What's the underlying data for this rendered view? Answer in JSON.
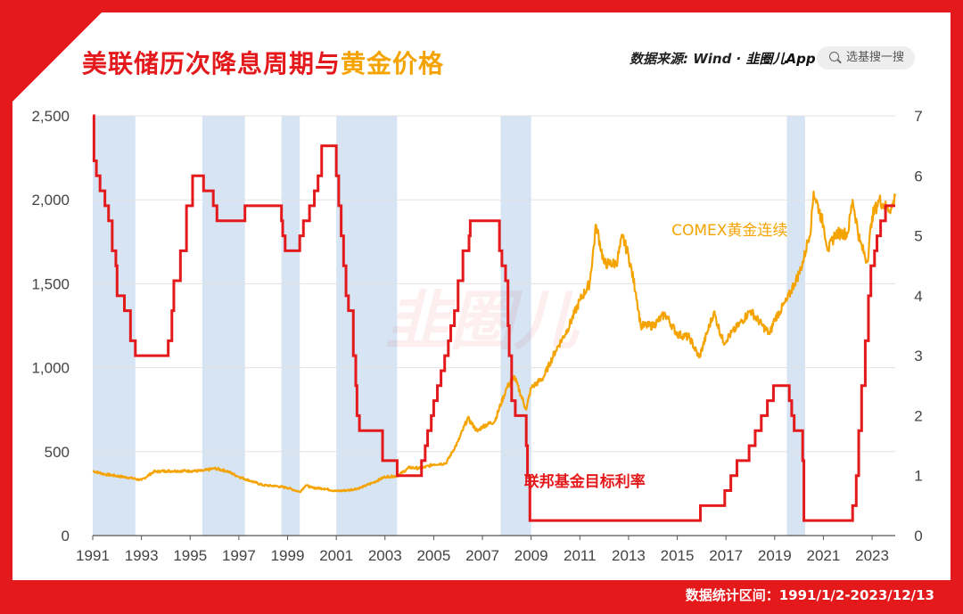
{
  "header": {
    "title_main": "美联储历次降息周期与",
    "title_highlight": "黄金价格",
    "source_label": "数据来源: Wind · ",
    "source_brand": "韭圈儿App",
    "search_placeholder": "选基搜一搜",
    "watermark": "韭圈儿"
  },
  "footer": {
    "date_range": "数据统计区间：1991/1/2-2023/12/13"
  },
  "colors": {
    "frame": "#e4191c",
    "gold": "#f5a300",
    "fed_rate": "#e4191c",
    "cut_band": "#d6e4f3"
  },
  "chart_data": {
    "type": "line",
    "title": "美联储历次降息周期与黄金价格",
    "x_range": [
      1991.0,
      2023.95
    ],
    "x_ticks": [
      "1991",
      "1993",
      "1995",
      "1997",
      "1999",
      "2001",
      "2003",
      "2005",
      "2007",
      "2009",
      "2011",
      "2013",
      "2015",
      "2017",
      "2019",
      "2021",
      "2023"
    ],
    "y_left": {
      "range": [
        0,
        2500
      ],
      "ticks": [
        "0",
        "500",
        "1,000",
        "1,500",
        "2,000",
        "2,500"
      ]
    },
    "y_right": {
      "range": [
        0,
        7
      ],
      "ticks": [
        "0",
        "1",
        "2",
        "3",
        "4",
        "5",
        "6",
        "7"
      ]
    },
    "grid": "horizontal",
    "rate_cut_periods": [
      [
        1991.0,
        1992.75
      ],
      [
        1995.5,
        1997.25
      ],
      [
        1998.75,
        1999.5
      ],
      [
        2001.0,
        2003.5
      ],
      [
        2007.75,
        2009.0
      ],
      [
        2019.5,
        2020.25
      ]
    ],
    "series": [
      {
        "name": "COMEX黄金连续",
        "axis": "left",
        "color": "#f5a300",
        "points": [
          [
            1991.0,
            385
          ],
          [
            1991.5,
            365
          ],
          [
            1992.0,
            355
          ],
          [
            1992.5,
            345
          ],
          [
            1993.0,
            330
          ],
          [
            1993.5,
            380
          ],
          [
            1994.0,
            385
          ],
          [
            1994.5,
            385
          ],
          [
            1995.0,
            385
          ],
          [
            1995.5,
            385
          ],
          [
            1996.0,
            400
          ],
          [
            1996.5,
            385
          ],
          [
            1997.0,
            350
          ],
          [
            1997.5,
            325
          ],
          [
            1998.0,
            300
          ],
          [
            1998.5,
            295
          ],
          [
            1999.0,
            285
          ],
          [
            1999.5,
            260
          ],
          [
            1999.75,
            300
          ],
          [
            2000.0,
            285
          ],
          [
            2000.5,
            280
          ],
          [
            2001.0,
            265
          ],
          [
            2001.5,
            270
          ],
          [
            2002.0,
            285
          ],
          [
            2002.5,
            315
          ],
          [
            2003.0,
            350
          ],
          [
            2003.5,
            355
          ],
          [
            2004.0,
            405
          ],
          [
            2004.5,
            400
          ],
          [
            2005.0,
            425
          ],
          [
            2005.5,
            430
          ],
          [
            2006.0,
            560
          ],
          [
            2006.4,
            700
          ],
          [
            2006.8,
            620
          ],
          [
            2007.0,
            650
          ],
          [
            2007.5,
            680
          ],
          [
            2008.0,
            880
          ],
          [
            2008.3,
            950
          ],
          [
            2008.8,
            750
          ],
          [
            2009.0,
            880
          ],
          [
            2009.5,
            940
          ],
          [
            2010.0,
            1100
          ],
          [
            2010.5,
            1230
          ],
          [
            2011.0,
            1400
          ],
          [
            2011.4,
            1500
          ],
          [
            2011.67,
            1850
          ],
          [
            2012.0,
            1620
          ],
          [
            2012.5,
            1620
          ],
          [
            2012.75,
            1780
          ],
          [
            2013.0,
            1670
          ],
          [
            2013.3,
            1450
          ],
          [
            2013.5,
            1250
          ],
          [
            2014.0,
            1250
          ],
          [
            2014.5,
            1320
          ],
          [
            2015.0,
            1200
          ],
          [
            2015.5,
            1180
          ],
          [
            2015.9,
            1060
          ],
          [
            2016.5,
            1330
          ],
          [
            2016.9,
            1150
          ],
          [
            2017.5,
            1250
          ],
          [
            2018.0,
            1340
          ],
          [
            2018.5,
            1250
          ],
          [
            2018.8,
            1200
          ],
          [
            2019.0,
            1290
          ],
          [
            2019.5,
            1400
          ],
          [
            2019.8,
            1500
          ],
          [
            2020.0,
            1560
          ],
          [
            2020.2,
            1650
          ],
          [
            2020.5,
            1850
          ],
          [
            2020.6,
            2050
          ],
          [
            2021.0,
            1850
          ],
          [
            2021.2,
            1700
          ],
          [
            2021.5,
            1800
          ],
          [
            2022.0,
            1800
          ],
          [
            2022.2,
            2000
          ],
          [
            2022.5,
            1750
          ],
          [
            2022.8,
            1630
          ],
          [
            2023.0,
            1900
          ],
          [
            2023.3,
            2000
          ],
          [
            2023.6,
            1950
          ],
          [
            2023.8,
            1950
          ],
          [
            2023.95,
            2020
          ]
        ]
      },
      {
        "name": "联邦基金目标利率",
        "axis": "right",
        "color": "#e4191c",
        "points": [
          [
            1991.0,
            7.0
          ],
          [
            1991.05,
            6.25
          ],
          [
            1991.15,
            6.0
          ],
          [
            1991.3,
            5.75
          ],
          [
            1991.5,
            5.5
          ],
          [
            1991.65,
            5.25
          ],
          [
            1991.8,
            4.75
          ],
          [
            1991.95,
            4.5
          ],
          [
            1992.0,
            4.0
          ],
          [
            1992.3,
            3.75
          ],
          [
            1992.55,
            3.25
          ],
          [
            1992.75,
            3.0
          ],
          [
            1994.1,
            3.25
          ],
          [
            1994.25,
            3.75
          ],
          [
            1994.33,
            4.25
          ],
          [
            1994.6,
            4.75
          ],
          [
            1994.85,
            5.5
          ],
          [
            1995.1,
            6.0
          ],
          [
            1995.55,
            5.75
          ],
          [
            1995.95,
            5.5
          ],
          [
            1996.1,
            5.25
          ],
          [
            1997.25,
            5.5
          ],
          [
            1998.75,
            5.25
          ],
          [
            1998.8,
            5.0
          ],
          [
            1998.9,
            4.75
          ],
          [
            1999.5,
            5.0
          ],
          [
            1999.65,
            5.25
          ],
          [
            1999.9,
            5.5
          ],
          [
            2000.1,
            5.75
          ],
          [
            2000.25,
            6.0
          ],
          [
            2000.4,
            6.5
          ],
          [
            2001.0,
            6.0
          ],
          [
            2001.1,
            5.5
          ],
          [
            2001.2,
            5.0
          ],
          [
            2001.3,
            4.5
          ],
          [
            2001.4,
            4.0
          ],
          [
            2001.5,
            3.75
          ],
          [
            2001.7,
            3.0
          ],
          [
            2001.8,
            2.5
          ],
          [
            2001.85,
            2.0
          ],
          [
            2001.95,
            1.75
          ],
          [
            2002.9,
            1.25
          ],
          [
            2003.5,
            1.0
          ],
          [
            2004.5,
            1.25
          ],
          [
            2004.65,
            1.5
          ],
          [
            2004.75,
            1.75
          ],
          [
            2004.9,
            2.0
          ],
          [
            2005.0,
            2.25
          ],
          [
            2005.15,
            2.5
          ],
          [
            2005.3,
            2.75
          ],
          [
            2005.45,
            3.0
          ],
          [
            2005.6,
            3.25
          ],
          [
            2005.7,
            3.5
          ],
          [
            2005.85,
            3.75
          ],
          [
            2006.0,
            4.25
          ],
          [
            2006.2,
            4.75
          ],
          [
            2006.45,
            5.0
          ],
          [
            2006.5,
            5.25
          ],
          [
            2007.7,
            4.75
          ],
          [
            2007.8,
            4.5
          ],
          [
            2007.95,
            4.25
          ],
          [
            2008.05,
            3.5
          ],
          [
            2008.1,
            3.0
          ],
          [
            2008.2,
            2.25
          ],
          [
            2008.35,
            2.0
          ],
          [
            2008.8,
            1.5
          ],
          [
            2008.85,
            1.0
          ],
          [
            2008.95,
            0.25
          ],
          [
            2015.95,
            0.5
          ],
          [
            2016.95,
            0.75
          ],
          [
            2017.2,
            1.0
          ],
          [
            2017.45,
            1.25
          ],
          [
            2017.95,
            1.5
          ],
          [
            2018.2,
            1.75
          ],
          [
            2018.45,
            2.0
          ],
          [
            2018.7,
            2.25
          ],
          [
            2018.95,
            2.5
          ],
          [
            2019.6,
            2.25
          ],
          [
            2019.7,
            2.0
          ],
          [
            2019.8,
            1.75
          ],
          [
            2020.15,
            1.25
          ],
          [
            2020.2,
            0.25
          ],
          [
            2022.2,
            0.5
          ],
          [
            2022.35,
            1.0
          ],
          [
            2022.45,
            1.75
          ],
          [
            2022.57,
            2.5
          ],
          [
            2022.72,
            3.25
          ],
          [
            2022.85,
            4.0
          ],
          [
            2022.95,
            4.5
          ],
          [
            2023.1,
            4.75
          ],
          [
            2023.2,
            5.0
          ],
          [
            2023.35,
            5.25
          ],
          [
            2023.55,
            5.5
          ]
        ]
      }
    ],
    "annotations": [
      {
        "text": "COMEX黄金连续",
        "color": "#f5a300"
      },
      {
        "text": "联邦基金目标利率",
        "color": "#e4191c"
      }
    ]
  }
}
